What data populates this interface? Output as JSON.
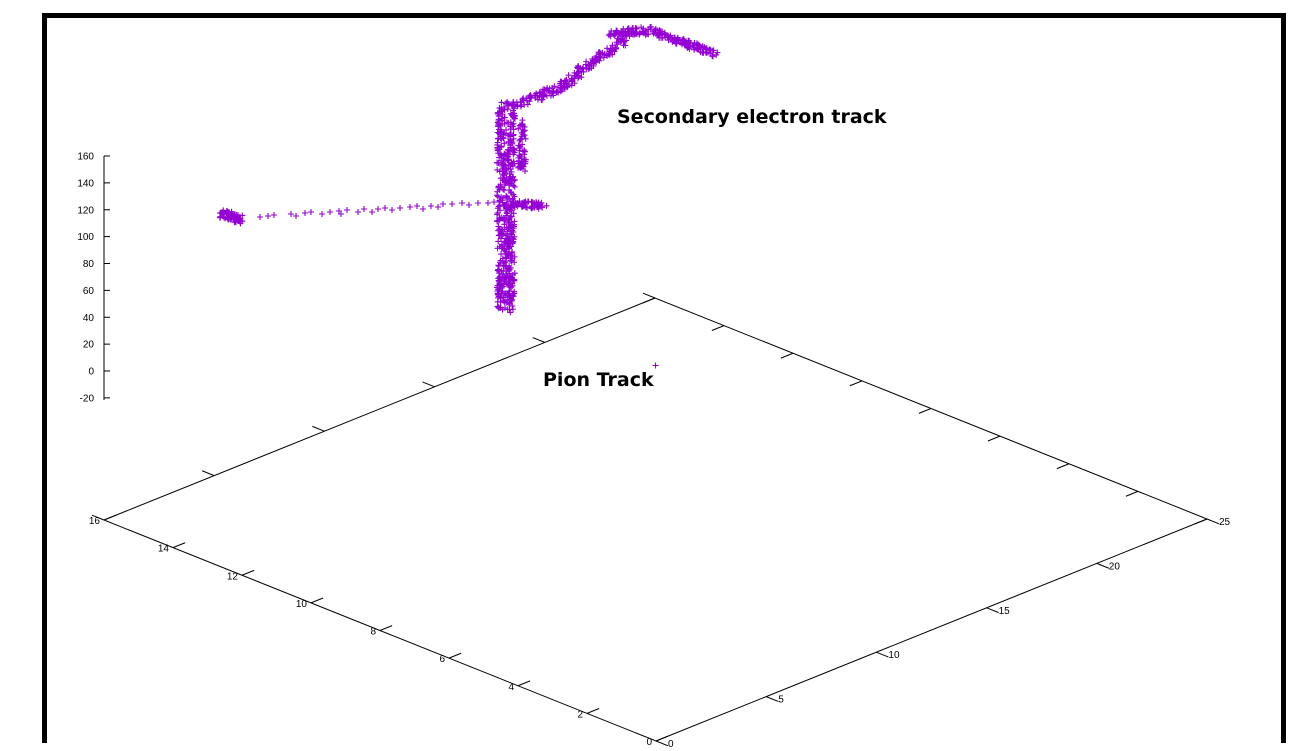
{
  "chart_data": {
    "type": "scatter",
    "title": "",
    "xlabel": "",
    "ylabel": "",
    "zlabel": "",
    "point_style": "plus",
    "colors": {
      "points": "#9400d3",
      "axes": "#000000",
      "frame": "#000000",
      "background": "#ffffff"
    },
    "axes": {
      "x": {
        "range": [
          0,
          25
        ],
        "ticks": [
          "0",
          "5",
          "10",
          "15",
          "20",
          "25"
        ]
      },
      "y": {
        "range": [
          0,
          16
        ],
        "ticks": [
          "0",
          "2",
          "4",
          "6",
          "8",
          "10",
          "12",
          "14",
          "16"
        ]
      },
      "z": {
        "range": [
          -20,
          160
        ],
        "ticks": [
          "-20",
          "0",
          "20",
          "40",
          "60",
          "80",
          "100",
          "120",
          "140",
          "160"
        ]
      }
    },
    "annotations": [
      {
        "text": "Secondary electron track"
      },
      {
        "text": "Pion Track"
      }
    ],
    "series": [
      {
        "description_point": "single hit near origin plane",
        "points": [
          [
            12.5,
            8,
            0
          ]
        ]
      }
    ]
  }
}
